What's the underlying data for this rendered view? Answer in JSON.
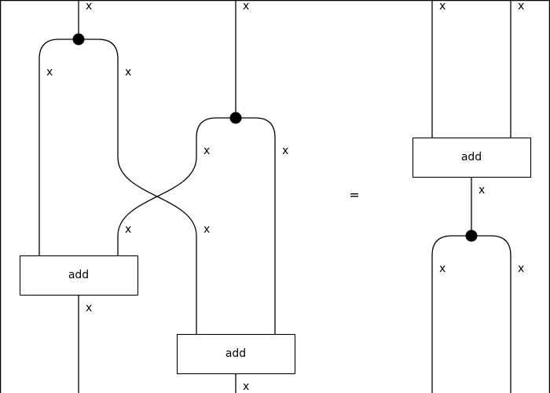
{
  "diagram": {
    "wire_label": "x",
    "box_label": "add",
    "equals": "="
  }
}
